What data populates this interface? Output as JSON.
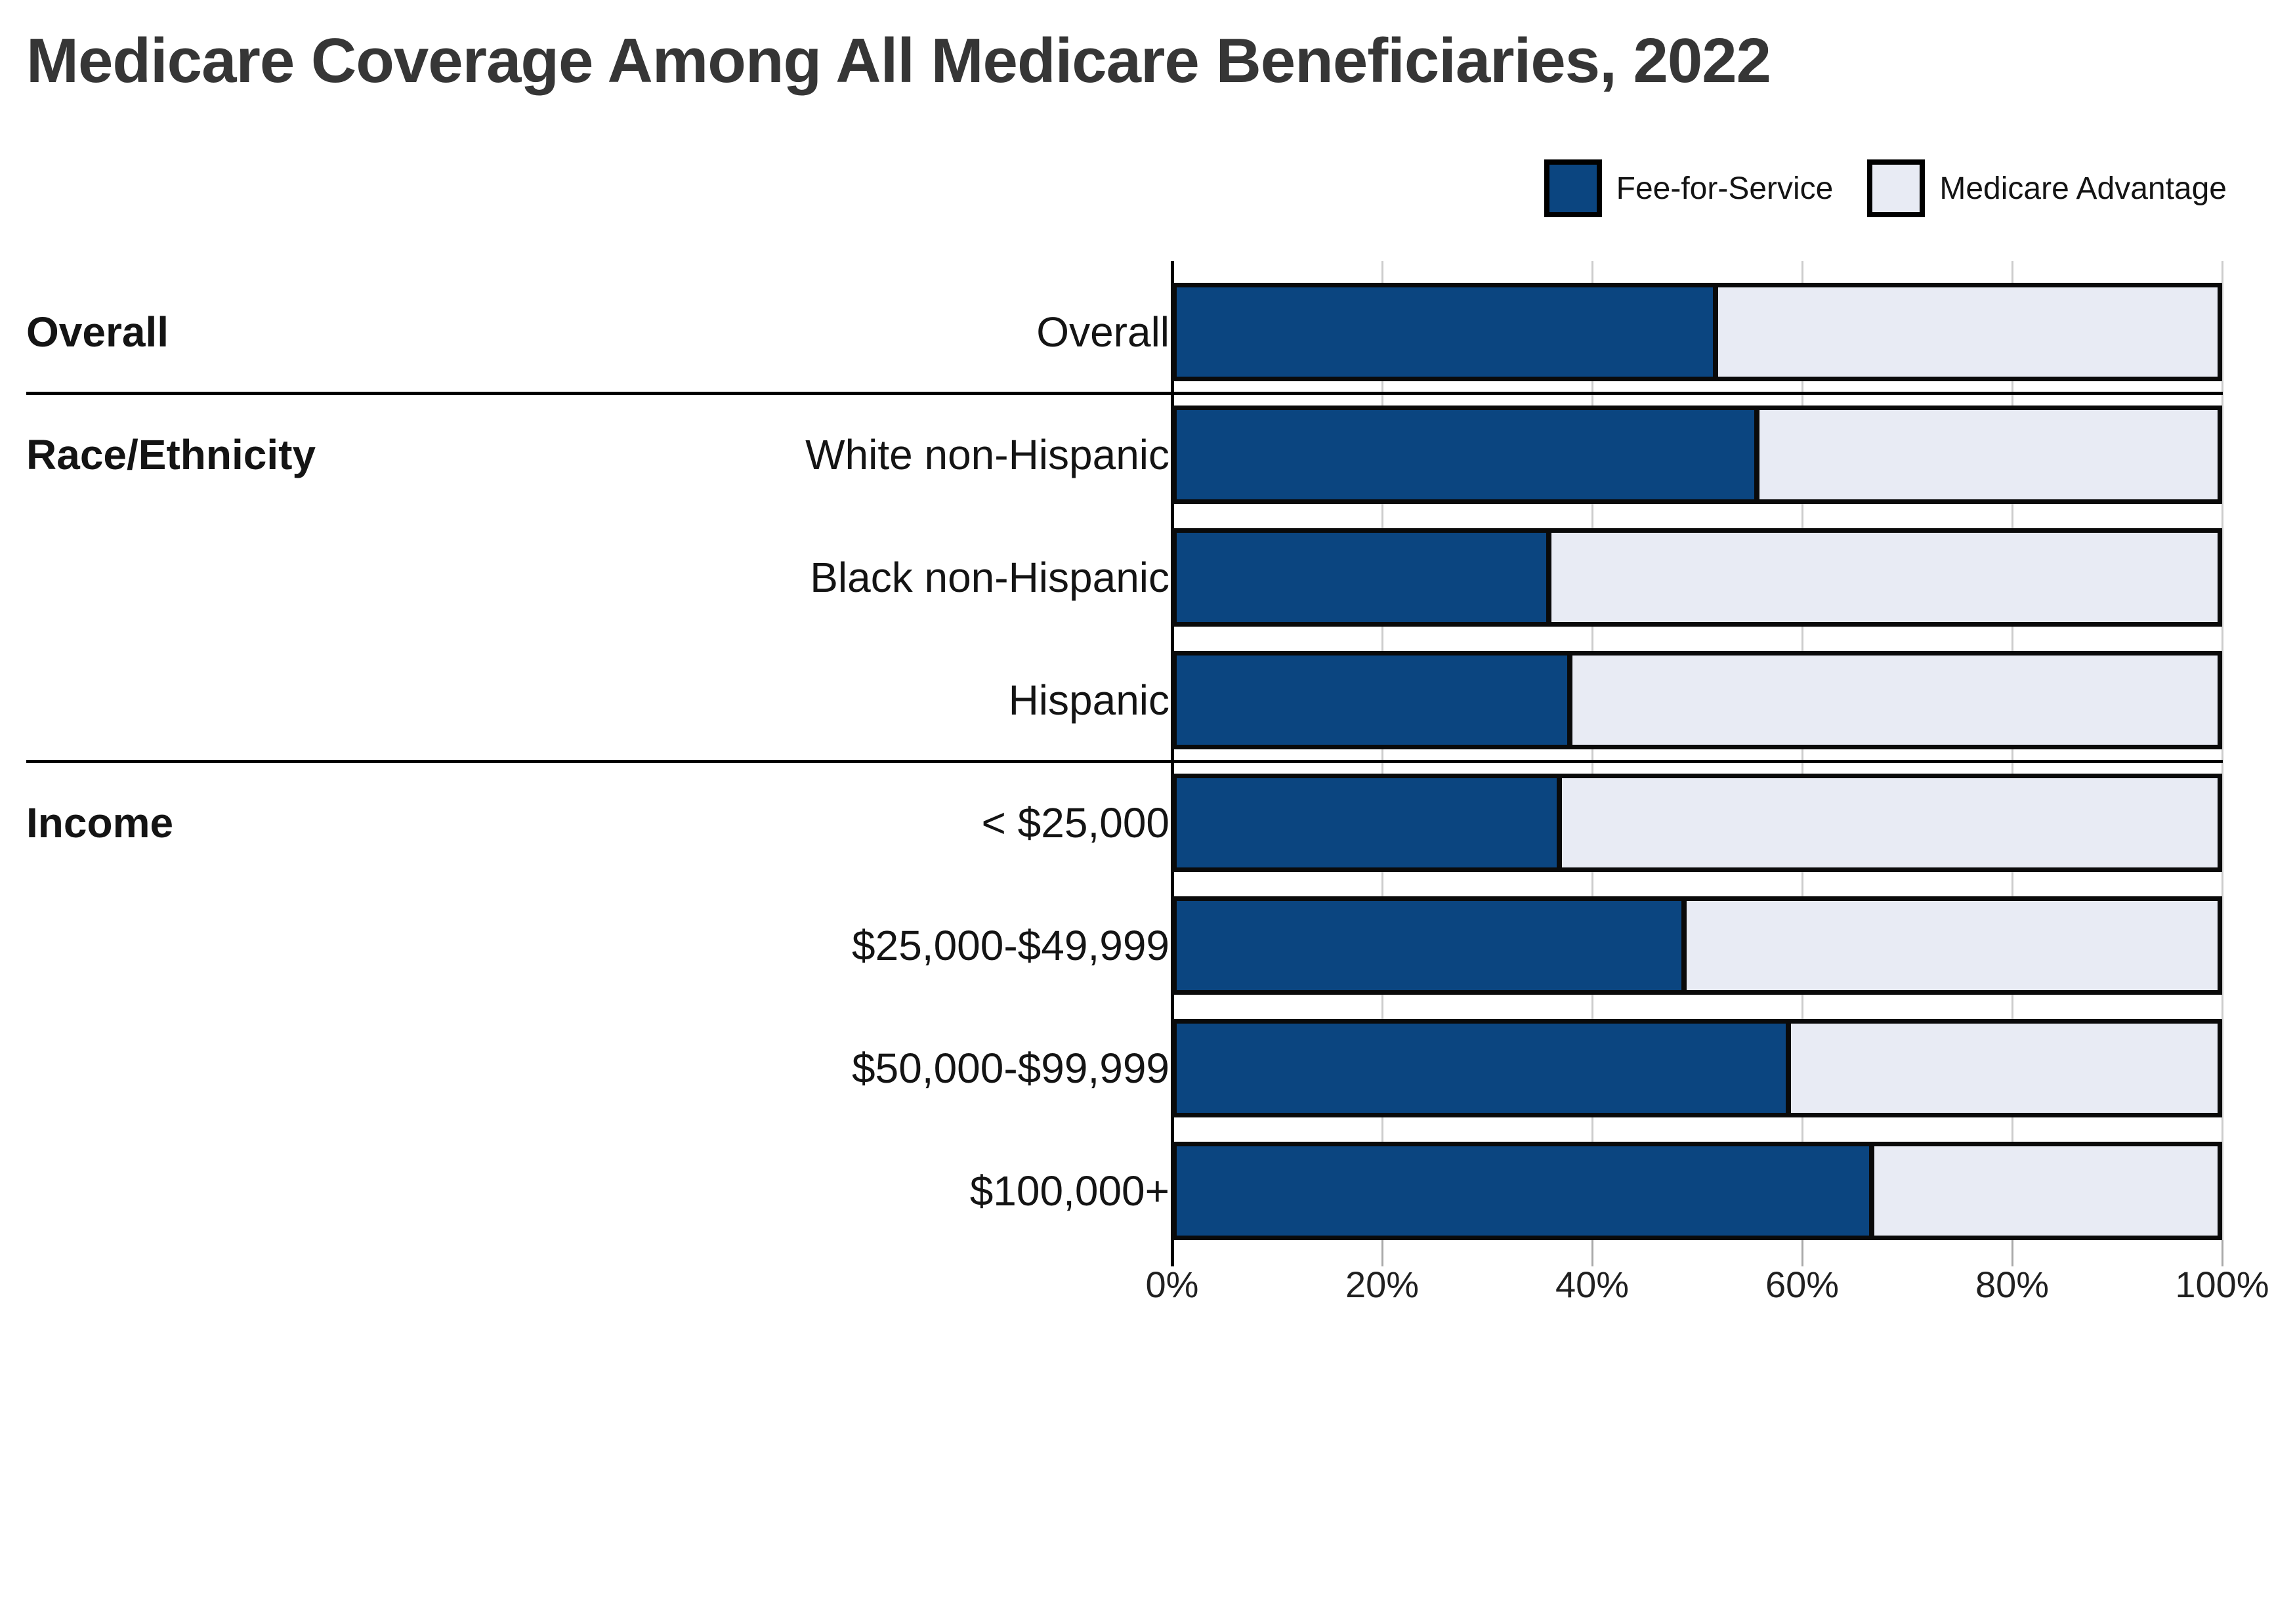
{
  "title": "Medicare Coverage Among All Medicare Beneficiaries, 2022",
  "colors": {
    "fee_for_service": "#0B4580",
    "medicare_advantage": "#E8EBF4",
    "bar_border": "#0a0a0a",
    "title_text": "#363636",
    "label_text": "#141414",
    "tick_text": "#202020",
    "gridline": "#cccccc",
    "tick_mark": "#a9a9a9",
    "axis_line": "#000000",
    "separator": "#000000",
    "background": "#ffffff"
  },
  "legend": {
    "items": [
      {
        "label": "Fee-for-Service",
        "color_key": "fee_for_service"
      },
      {
        "label": "Medicare Advantage",
        "color_key": "medicare_advantage"
      }
    ]
  },
  "x_axis": {
    "tick_labels": [
      "0%",
      "20%",
      "40%",
      "60%",
      "80%",
      "100%"
    ],
    "min": 0,
    "max": 100
  },
  "sections": [
    {
      "label": "Overall",
      "first_row": 0
    },
    {
      "label": "Race/Ethnicity",
      "first_row": 1
    },
    {
      "label": "Income",
      "first_row": 4
    }
  ],
  "chart_data": {
    "type": "bar",
    "orientation": "horizontal-stacked",
    "title": "Medicare Coverage Among All Medicare Beneficiaries, 2022",
    "categories": [
      "Overall",
      "White non-Hispanic",
      "Black non-Hispanic",
      "Hispanic",
      "< $25,000",
      "$25,000-$49,999",
      "$50,000-$99,999",
      "$100,000+"
    ],
    "series": [
      {
        "name": "Fee-for-Service",
        "values": [
          52,
          56,
          36,
          38,
          37,
          49,
          59,
          67
        ]
      },
      {
        "name": "Medicare Advantage",
        "values": [
          48,
          44,
          64,
          62,
          63,
          51,
          41,
          33
        ]
      }
    ],
    "xlabel": "",
    "ylabel": "",
    "xlim": [
      0,
      100
    ],
    "x_tick_labels": [
      "0%",
      "20%",
      "40%",
      "60%",
      "80%",
      "100%"
    ],
    "grid": "vertical",
    "legend_position": "top-right"
  }
}
